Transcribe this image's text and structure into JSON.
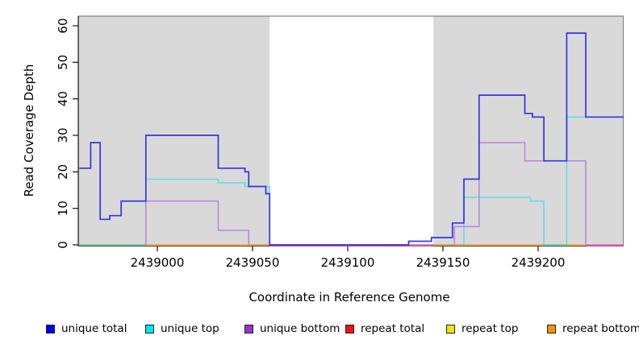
{
  "chart_data": {
    "type": "line",
    "subtype": "step-coverage",
    "title": "",
    "xlabel": "Coordinate in Reference Genome",
    "ylabel": "Read Coverage Depth",
    "x_ticks": [
      2439000,
      2439050,
      2439100,
      2439150,
      2439200
    ],
    "y_ticks": [
      0,
      10,
      20,
      30,
      40,
      50,
      60
    ],
    "xlim": [
      2438958.5,
      2439244.7
    ],
    "ylim": [
      0,
      63
    ],
    "grid": false,
    "legend_position": "bottom",
    "plot_bg": "#ffffff",
    "background_bands": [
      {
        "name": "covered-region-left",
        "from": 2438958.5,
        "to": 2439059,
        "color": "#d9d9d9"
      },
      {
        "name": "covered-region-right",
        "from": 2439145,
        "to": 2439244.7,
        "color": "#d9d9d9"
      }
    ],
    "series": [
      {
        "name": "unique total",
        "color": "#3434E0",
        "legend_color": "#0000EE",
        "steps": [
          [
            2438959,
            21
          ],
          [
            2438965,
            28
          ],
          [
            2438970,
            7
          ],
          [
            2438975,
            8
          ],
          [
            2438981,
            12
          ],
          [
            2438994,
            30
          ],
          [
            2439032,
            21
          ],
          [
            2439046,
            20
          ],
          [
            2439048,
            16
          ],
          [
            2439057,
            14
          ],
          [
            2439059,
            0
          ],
          [
            2439132,
            1
          ],
          [
            2439144,
            2
          ],
          [
            2439155,
            6
          ],
          [
            2439161,
            18
          ],
          [
            2439169,
            41
          ],
          [
            2439193,
            36
          ],
          [
            2439197,
            35
          ],
          [
            2439203,
            23
          ],
          [
            2439215,
            58
          ],
          [
            2439225,
            35
          ],
          [
            2439245,
            35
          ]
        ]
      },
      {
        "name": "unique top",
        "color": "#52DCE8",
        "legend_color": "#00E5EE",
        "steps": [
          [
            2438959,
            0
          ],
          [
            2438994,
            18
          ],
          [
            2439032,
            17
          ],
          [
            2439046,
            16
          ],
          [
            2439059,
            0
          ],
          [
            2439161,
            13
          ],
          [
            2439196,
            12
          ],
          [
            2439203,
            0
          ],
          [
            2439215,
            35
          ],
          [
            2439245,
            35
          ]
        ]
      },
      {
        "name": "unique bottom",
        "color": "#B77BE0",
        "legend_color": "#9B30D9",
        "steps": [
          [
            2438959,
            0
          ],
          [
            2438994,
            12
          ],
          [
            2439032,
            4
          ],
          [
            2439048,
            0
          ],
          [
            2439156,
            5
          ],
          [
            2439169,
            28
          ],
          [
            2439193,
            23
          ],
          [
            2439225,
            0
          ],
          [
            2439245,
            0
          ]
        ]
      },
      {
        "name": "repeat total",
        "color": "#E8476E",
        "legend_color": "#EE1111",
        "steps": [
          [
            2438959,
            0
          ],
          [
            2439245,
            0
          ]
        ]
      },
      {
        "name": "repeat top",
        "color": "#E8E34D",
        "legend_color": "#F2E30E",
        "steps": [
          [
            2438959,
            0
          ],
          [
            2439245,
            0
          ]
        ]
      },
      {
        "name": "repeat bottom",
        "color": "#FF9D1E",
        "legend_color": "#F59300",
        "steps": [
          [
            2438959,
            0
          ],
          [
            2439245,
            0
          ]
        ]
      }
    ],
    "baseline_overlay_segments": [
      {
        "color": "#6fcf97",
        "from": 2438959,
        "to": 2438994,
        "dy": 0
      },
      {
        "color": "#FF9D1E",
        "from": 2438994,
        "to": 2439059,
        "dy": 0
      },
      {
        "color": "#E8476E",
        "from": 2439059,
        "to": 2439145,
        "dy": 1.3
      },
      {
        "color": "#FF9D1E",
        "from": 2439145,
        "to": 2439203,
        "dy": 0
      },
      {
        "color": "#6fcf97",
        "from": 2439203,
        "to": 2439215,
        "dy": 0
      },
      {
        "color": "#FF9D1E",
        "from": 2439215,
        "to": 2439225,
        "dy": 0
      },
      {
        "color": "#E8476E",
        "from": 2439225,
        "to": 2439245,
        "dy": 1.3
      }
    ]
  }
}
